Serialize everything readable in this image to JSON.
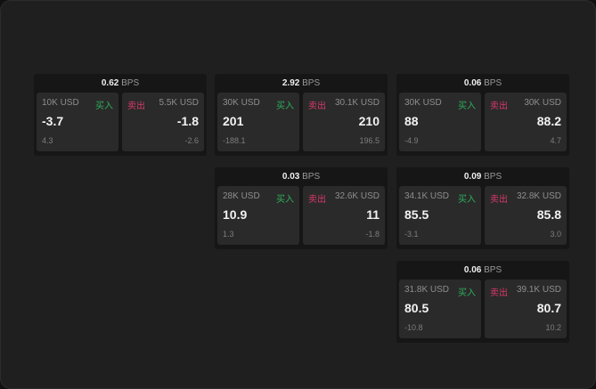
{
  "unit": "BPS",
  "buy_label": "买入",
  "sell_label": "卖出",
  "colors": {
    "buy": "#2fae5b",
    "sell": "#d9386a"
  },
  "panels": [
    {
      "spread": "0.62",
      "buy": {
        "qty": "10K USD",
        "price": "-3.7",
        "change": "4.3"
      },
      "sell": {
        "qty": "5.5K USD",
        "price": "-1.8",
        "change": "-2.6"
      }
    },
    {
      "spread": "2.92",
      "buy": {
        "qty": "30K USD",
        "price": "201",
        "change": "-188.1"
      },
      "sell": {
        "qty": "30.1K USD",
        "price": "210",
        "change": "196.5"
      }
    },
    {
      "spread": "0.06",
      "buy": {
        "qty": "30K USD",
        "price": "88",
        "change": "-4.9"
      },
      "sell": {
        "qty": "30K USD",
        "price": "88.2",
        "change": "4.7"
      }
    },
    {
      "spread": "0.03",
      "buy": {
        "qty": "28K USD",
        "price": "10.9",
        "change": "1.3"
      },
      "sell": {
        "qty": "32.6K USD",
        "price": "11",
        "change": "-1.8"
      }
    },
    {
      "spread": "0.09",
      "buy": {
        "qty": "34.1K USD",
        "price": "85.5",
        "change": "-3.1"
      },
      "sell": {
        "qty": "32.8K USD",
        "price": "85.8",
        "change": "3.0"
      }
    },
    {
      "spread": "0.06",
      "buy": {
        "qty": "31.8K USD",
        "price": "80.5",
        "change": "-10.8"
      },
      "sell": {
        "qty": "39.1K USD",
        "price": "80.7",
        "change": "10.2"
      }
    }
  ]
}
